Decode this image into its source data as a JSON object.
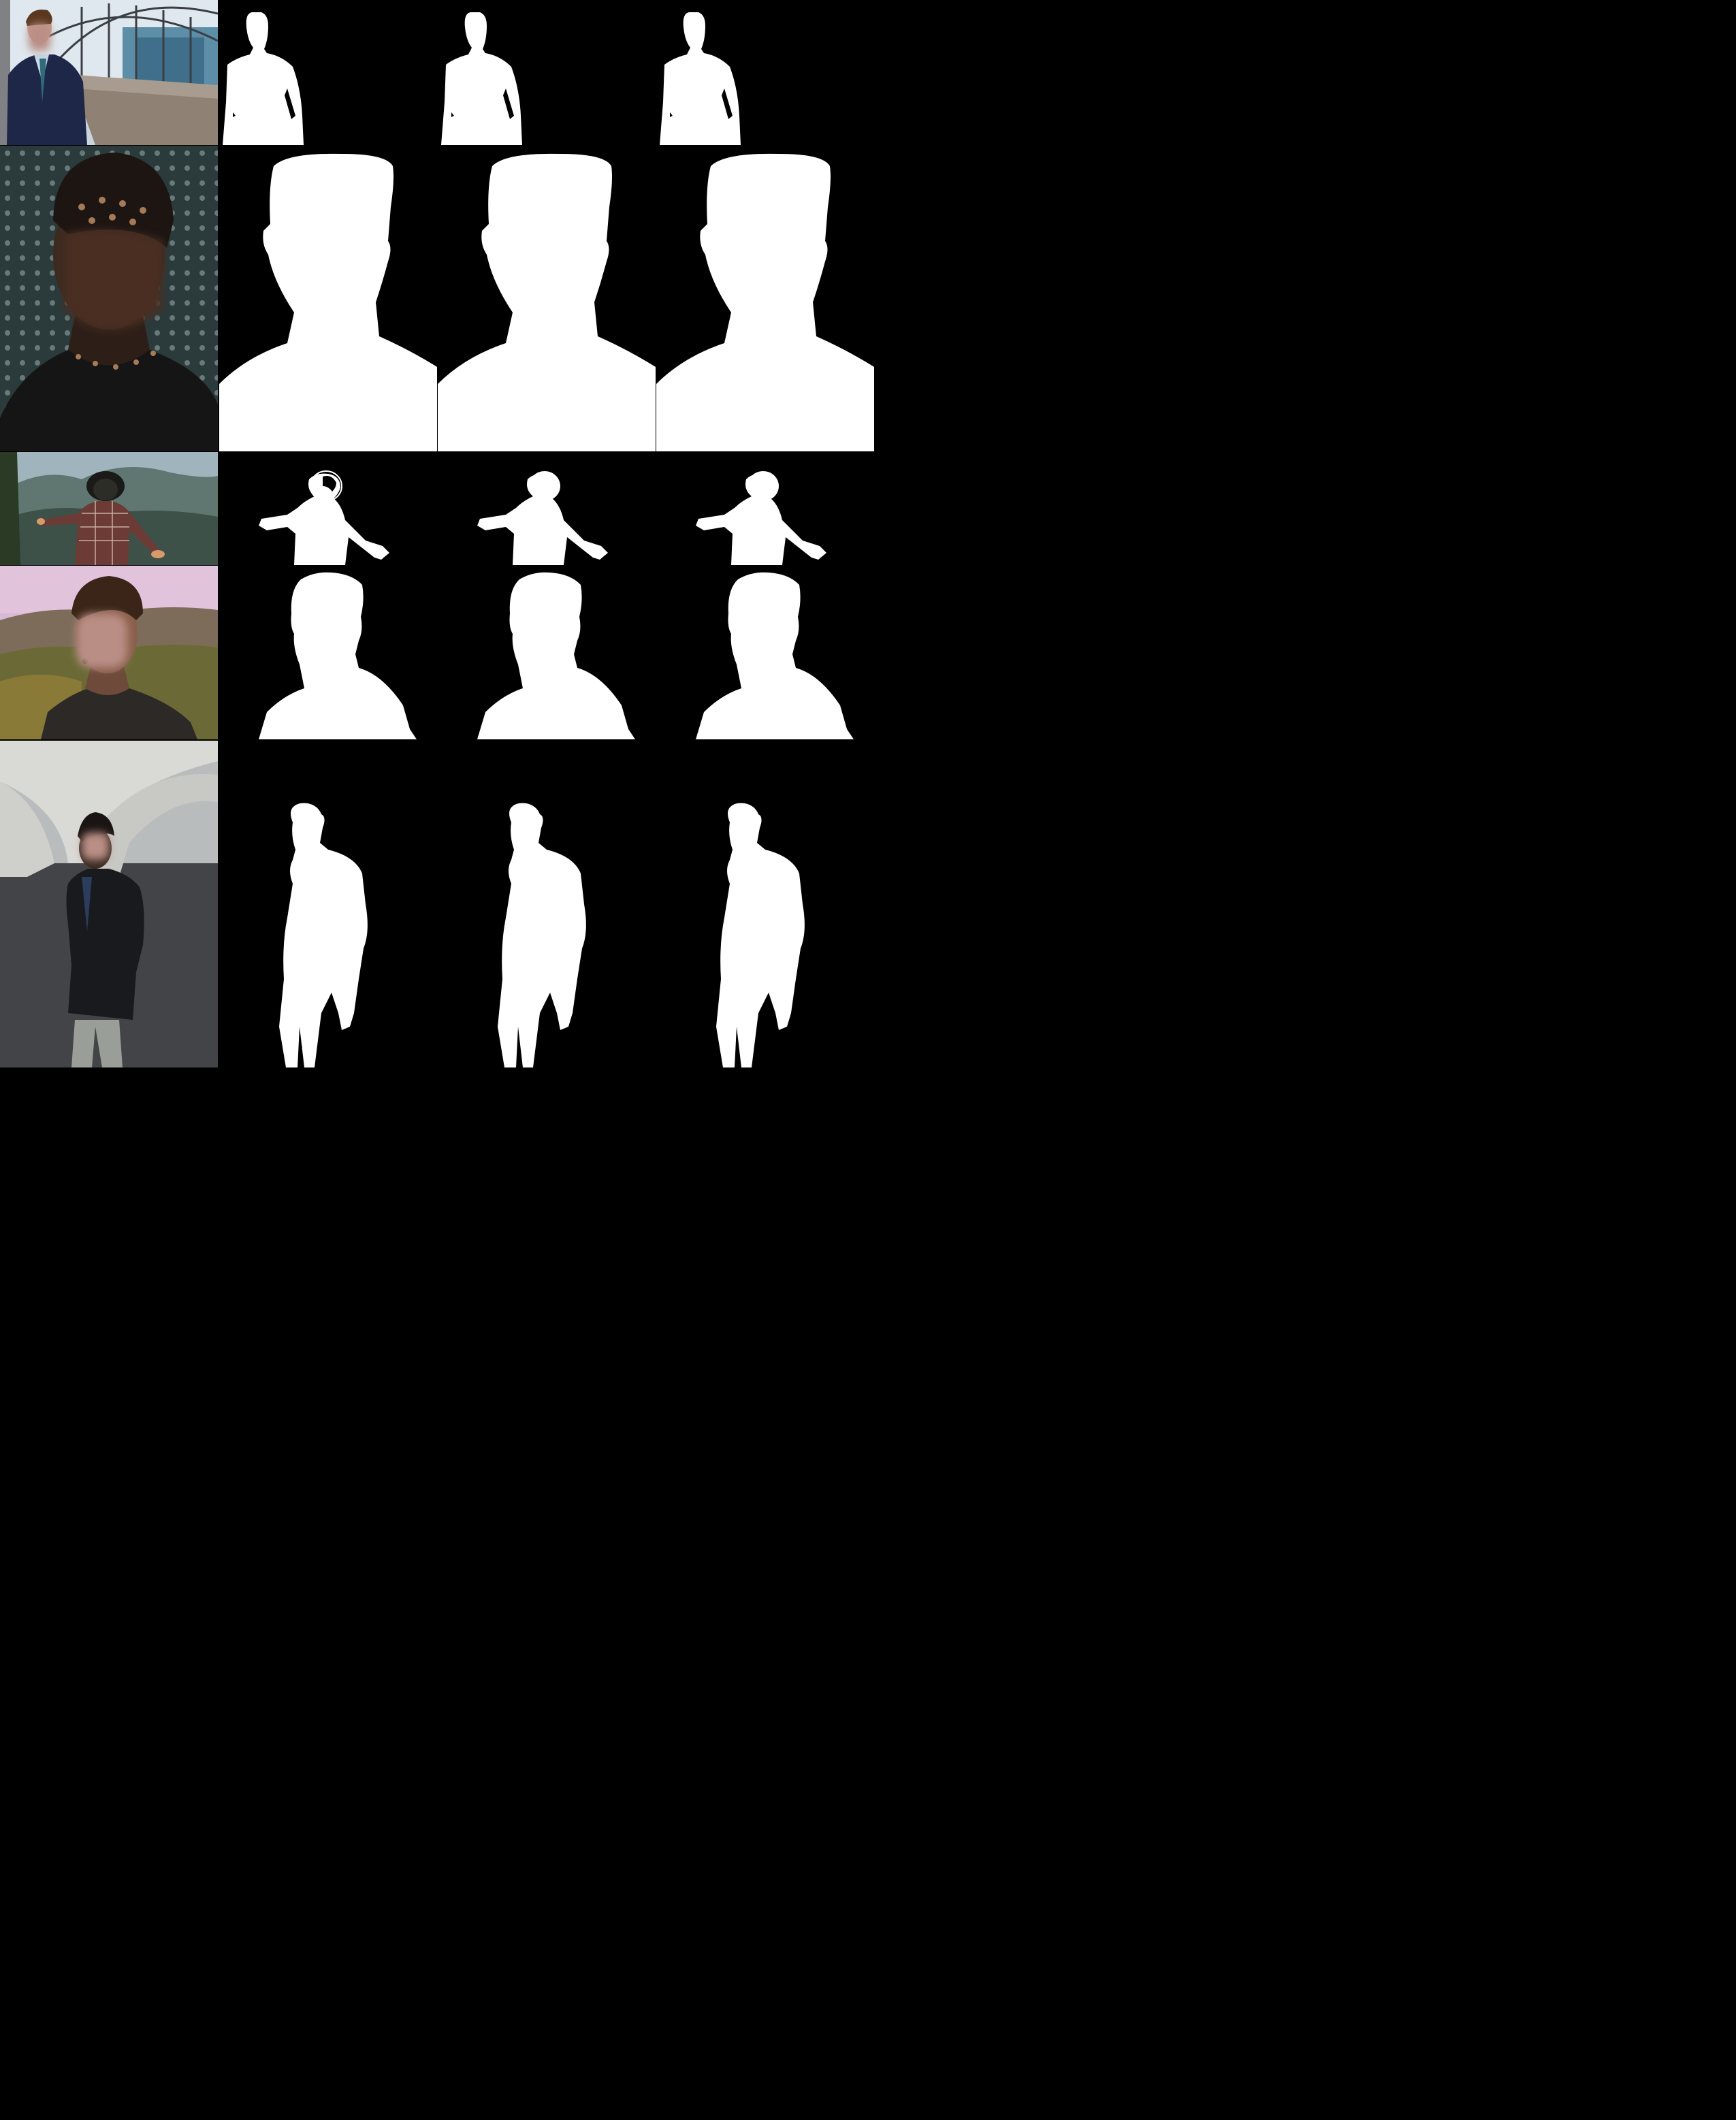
{
  "figure": {
    "columns": [
      "input-photo",
      "matte-a",
      "matte-b",
      "matte-c"
    ],
    "rows": [
      {
        "id": "row-1",
        "subject": "man-in-suit-glass-walkway",
        "mask_bg": "#000000",
        "mask_fg": "#ffffff"
      },
      {
        "id": "row-2",
        "subject": "man-dappled-light-closeup",
        "mask_bg": "#000000",
        "mask_fg": "#ffffff"
      },
      {
        "id": "row-3",
        "subject": "man-hat-mountains-back",
        "mask_bg": "#000000",
        "mask_fg": "#ffffff"
      },
      {
        "id": "row-4",
        "subject": "man-curly-hair-hoodie",
        "mask_bg": "#000000",
        "mask_fg": "#ffffff"
      },
      {
        "id": "row-5",
        "subject": "man-coat-under-bridge",
        "mask_bg": "#000000",
        "mask_fg": "#ffffff"
      }
    ]
  },
  "colors": {
    "background": "#000000",
    "mask_foreground": "#ffffff",
    "face_blur": "#b98e85"
  }
}
